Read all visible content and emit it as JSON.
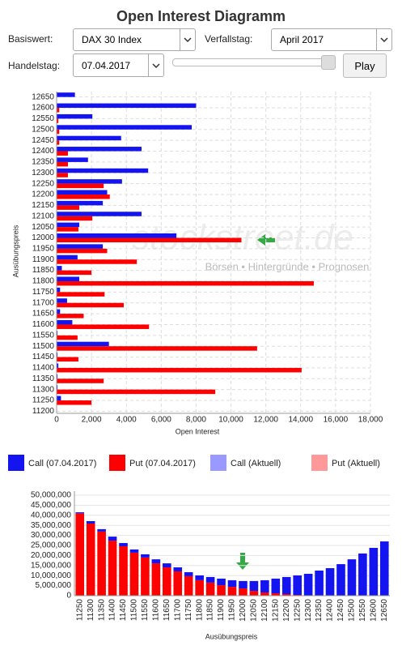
{
  "title": "Open Interest Diagramm",
  "controls": {
    "basiswert_label": "Basiswert:",
    "basiswert": "DAX 30 Index",
    "verfallstag_label": "Verfallstag:",
    "verfallstag": "April 2017",
    "handelstag_label": "Handelstag:",
    "handelstag": "07.04.2017",
    "play": "Play"
  },
  "watermark": {
    "title": "stockstreet.de",
    "subtitle": "Börsen • Hintergründe • Prognosen"
  },
  "chart_data": [
    {
      "type": "bar",
      "horizontal": true,
      "xlabel": "Open Interest",
      "ylabel": "Ausübungspreis",
      "grid": true,
      "categories": [
        "12650",
        "12600",
        "12550",
        "12500",
        "12450",
        "12400",
        "12350",
        "12300",
        "12250",
        "12200",
        "12150",
        "12100",
        "12050",
        "12000",
        "11950",
        "11900",
        "11850",
        "11800",
        "11750",
        "11700",
        "11650",
        "11600",
        "11550",
        "11500",
        "11450",
        "11400",
        "11350",
        "11300",
        "11250",
        "11200"
      ],
      "series": [
        {
          "name": "Call (07.04.2017)",
          "color": "#1414f0",
          "values": [
            1050,
            8000,
            2050,
            7750,
            3700,
            4870,
            1800,
            5250,
            3750,
            2900,
            2650,
            4870,
            1300,
            6870,
            2650,
            1200,
            300,
            1300,
            200,
            600,
            200,
            900,
            50,
            3000,
            50,
            100,
            50,
            50,
            250,
            0
          ]
        },
        {
          "name": "Put (07.04.2017)",
          "color": "#ff0000",
          "values": [
            0,
            150,
            100,
            150,
            150,
            650,
            650,
            650,
            2700,
            3050,
            1300,
            2050,
            1250,
            10600,
            2900,
            4600,
            2000,
            14750,
            2750,
            3850,
            1550,
            5300,
            1200,
            11500,
            1250,
            14050,
            2700,
            9100,
            2000,
            0
          ]
        },
        {
          "name": "Call (Aktuell)",
          "color": "#9999ff",
          "values": [
            null,
            null,
            null,
            null,
            null,
            null,
            null,
            null,
            null,
            null,
            null,
            null,
            null,
            null,
            null,
            null,
            null,
            null,
            null,
            null,
            null,
            null,
            null,
            null,
            null,
            null,
            null,
            null,
            null,
            null
          ]
        },
        {
          "name": "Put (Aktuell)",
          "color": "#ff9999",
          "values": [
            null,
            null,
            null,
            null,
            null,
            null,
            null,
            null,
            null,
            null,
            null,
            null,
            null,
            null,
            null,
            null,
            null,
            null,
            null,
            null,
            null,
            null,
            null,
            null,
            null,
            null,
            null,
            null,
            null,
            null
          ]
        }
      ],
      "xlim": [
        0,
        18000
      ],
      "xticks": [
        0,
        {
          "value": 2000,
          "label": "2,000"
        },
        {
          "value": 4000,
          "label": "4,000"
        },
        {
          "value": 6000,
          "label": "6,000"
        },
        {
          "value": 8000,
          "label": "8,000"
        },
        {
          "value": 10000,
          "label": "10,000"
        },
        {
          "value": 12000,
          "label": "12,000"
        },
        {
          "value": 14000,
          "label": "14,000"
        },
        {
          "value": 16000,
          "label": "16,000"
        },
        {
          "value": 18000,
          "label": "18,000"
        }
      ]
    },
    {
      "type": "bar",
      "stacked": true,
      "xlabel": "Ausübungspreis",
      "grid": true,
      "categories": [
        "11250",
        "11300",
        "11350",
        "11400",
        "11450",
        "11500",
        "11550",
        "11600",
        "11650",
        "11700",
        "11750",
        "11800",
        "11850",
        "11900",
        "11950",
        "12000",
        "12050",
        "12100",
        "12150",
        "12200",
        "12250",
        "12300",
        "12350",
        "12400",
        "12450",
        "12500",
        "12550",
        "12600",
        "12650"
      ],
      "series": [
        {
          "color": "#ff0000",
          "values": [
            41000000,
            35900000,
            31900000,
            27400000,
            24600000,
            21400000,
            19000000,
            16100000,
            14100000,
            12100000,
            9700000,
            7700000,
            6500000,
            5200000,
            4400000,
            3600000,
            2400000,
            1600000,
            1200000,
            800000,
            400000,
            200000,
            100000,
            0,
            0,
            0,
            0,
            0,
            0
          ]
        },
        {
          "color": "#1414f0",
          "values": [
            500000,
            1200000,
            1200000,
            2000000,
            1600000,
            1600000,
            1600000,
            2000000,
            2000000,
            2000000,
            2000000,
            2400000,
            2800000,
            3300000,
            3300000,
            3700000,
            4900000,
            6100000,
            7300000,
            8500000,
            9700000,
            10700000,
            12400000,
            13700000,
            15700000,
            18100000,
            21000000,
            23800000,
            27000000
          ]
        }
      ],
      "ylim": [
        0,
        50000000
      ],
      "yticks": [
        0,
        {
          "value": 5000000,
          "label": "5,000,000"
        },
        {
          "value": 10000000,
          "label": "10,000,000"
        },
        {
          "value": 15000000,
          "label": "15,000,000"
        },
        {
          "value": 20000000,
          "label": "20,000,000"
        },
        {
          "value": 25000000,
          "label": "25,000,000"
        },
        {
          "value": 30000000,
          "label": "30,000,000"
        },
        {
          "value": 35000000,
          "label": "35,000,000"
        },
        {
          "value": 40000000,
          "label": "40,000,000"
        },
        {
          "value": 45000000,
          "label": "45,000,000"
        },
        {
          "value": 50000000,
          "label": "50,000,000"
        }
      ]
    }
  ]
}
